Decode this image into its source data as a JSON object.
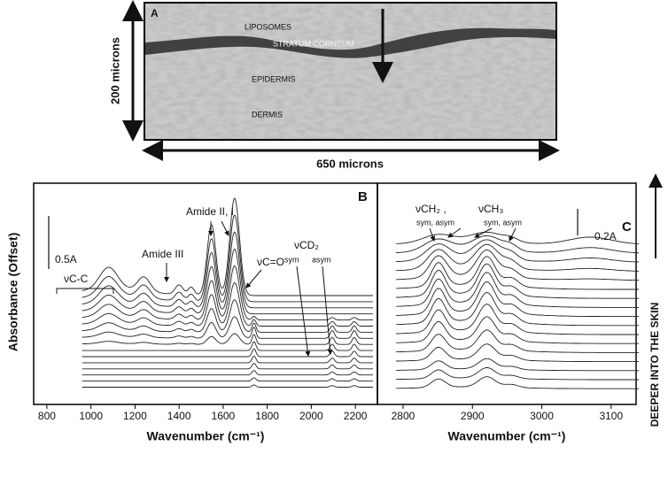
{
  "figure": {
    "panel_a": {
      "label": "A",
      "annotations": [
        "LIPOSOMES",
        "STRATUM CORNEUM",
        "EPIDERMIS",
        "DERMIS"
      ],
      "height_label": "200 microns",
      "width_label": "650 microns"
    },
    "panel_b": {
      "label": "B",
      "xlim": [
        740,
        2300
      ],
      "xticks": [
        800,
        1000,
        1200,
        1400,
        1600,
        1800,
        2000,
        2200
      ],
      "x_label": "Wavenumber (cm⁻¹)",
      "scale_label": "0.5A",
      "annotations": [
        "Amide II, I",
        "Amide III",
        "νC-C",
        "νC=O",
        "νCD₂",
        "sym",
        "asym"
      ]
    },
    "panel_c": {
      "label": "C",
      "xlim": [
        2763,
        3136
      ],
      "xticks": [
        2800,
        2900,
        3000,
        3100
      ],
      "x_label": "Wavenumber (cm⁻¹)",
      "scale_label": "0.2A",
      "annotations": [
        "νCH₂ ,",
        "sym, asym",
        "νCH₃",
        "sym,  asym"
      ]
    },
    "y_label": "Absorbance (Offset)",
    "side_label": "DEEPER INTO THE SKIN"
  }
}
